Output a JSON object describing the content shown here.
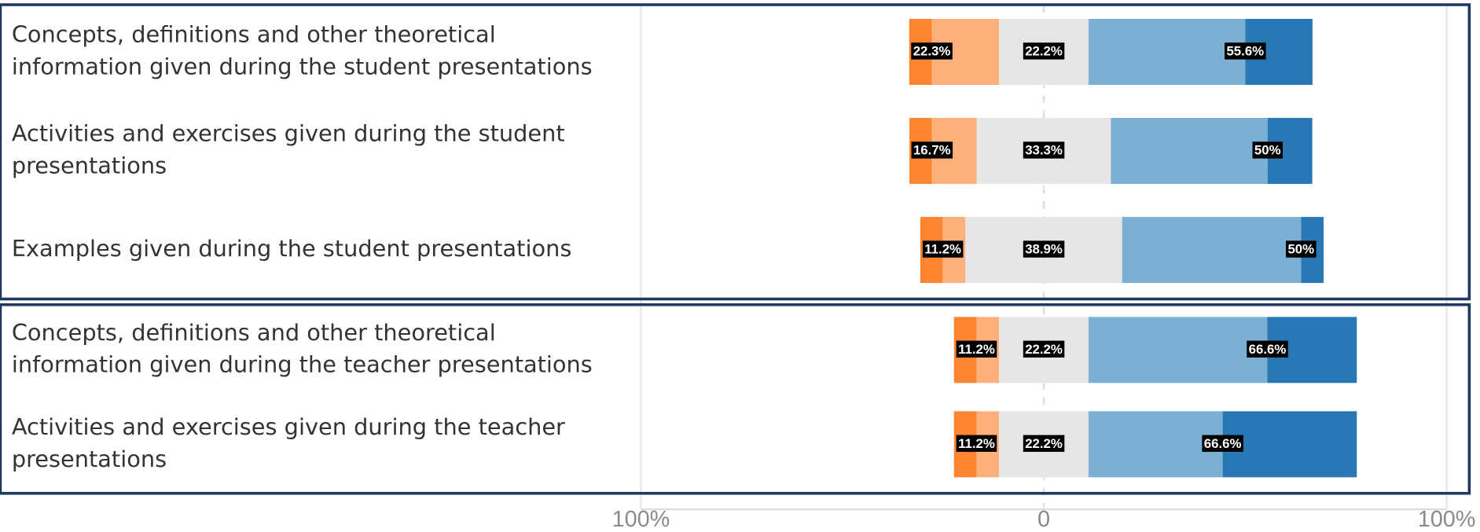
{
  "chart_data": {
    "type": "diverging-bar",
    "categories": [
      [
        "Concepts, definitions and other theoretical",
        "information given during the student presentations"
      ],
      [
        "Activities and exercises given during the student",
        "presentations"
      ],
      [
        "Examples given during the student presentations"
      ],
      [
        "Concepts, definitions and other theoretical",
        "information given during the teacher presentations"
      ],
      [
        "Activities and exercises given during the teacher",
        "presentations"
      ]
    ],
    "groups": [
      [
        0,
        2
      ],
      [
        3,
        4
      ]
    ],
    "series": [
      {
        "color": "#fd8431",
        "values": [
          5.6,
          5.6,
          5.6,
          5.6,
          5.6
        ]
      },
      {
        "color": "#fdb07a",
        "values": [
          16.7,
          11.1,
          5.6,
          5.6,
          5.6
        ]
      },
      {
        "color": "#e6e6e6",
        "values": [
          22.2,
          33.3,
          38.9,
          22.2,
          22.2
        ]
      },
      {
        "color": "#7bafd4",
        "values": [
          38.9,
          38.9,
          44.4,
          44.4,
          33.3
        ]
      },
      {
        "color": "#2878b5",
        "values": [
          16.7,
          11.1,
          5.6,
          22.2,
          33.3
        ]
      }
    ],
    "summary": {
      "negative": {
        "values": [
          22.3,
          16.7,
          11.2,
          11.2,
          11.2
        ],
        "value_labels": [
          "22.3%",
          "16.7%",
          "11.2%",
          "11.2%",
          "11.2%"
        ]
      },
      "neutral": {
        "values": [
          22.2,
          33.3,
          38.9,
          22.2,
          22.2
        ],
        "value_labels": [
          "22.2%",
          "33.3%",
          "38.9%",
          "22.2%",
          "22.2%"
        ]
      },
      "positive": {
        "values": [
          55.6,
          50,
          50,
          66.6,
          66.6
        ],
        "value_labels": [
          "55.6%",
          "50%",
          "50%",
          "66.6%",
          "66.6%"
        ]
      }
    },
    "xlim": [
      -100,
      100
    ],
    "xticks": [
      {
        "value": -100,
        "label": "100%"
      },
      0,
      {
        "value": 100,
        "label": "100%"
      }
    ],
    "grid": true
  }
}
